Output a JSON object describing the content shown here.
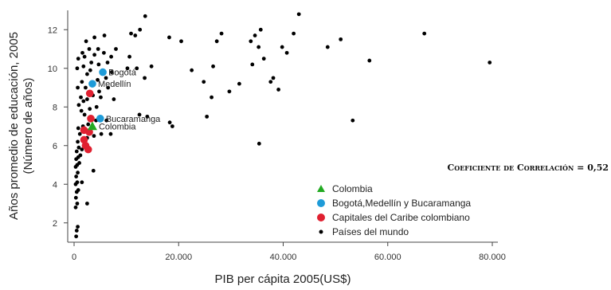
{
  "chart_data": {
    "type": "scatter",
    "xlabel": "PIB per cápita 2005(US$)",
    "ylabel": "Años promedio de educación, 2005",
    "ylabel_sub": "(Número de años)",
    "xlim": [
      0,
      80000
    ],
    "ylim": [
      1,
      13
    ],
    "x_ticks": [
      0,
      20000,
      40000,
      60000,
      80000
    ],
    "x_tick_labels": [
      "0",
      "20.000",
      "40.000",
      "60.000",
      "80.000"
    ],
    "y_ticks": [
      2,
      4,
      6,
      8,
      10,
      12
    ],
    "y_tick_labels": [
      "2",
      "4",
      "6",
      "8",
      "10",
      "12"
    ],
    "grid": false,
    "legend_position": "bottom-right",
    "annotation": "Coeficiente de Correlación = 0,52",
    "series": [
      {
        "name": "Colombia",
        "marker": "triangle",
        "color": "#22aa22",
        "points": [
          [
            3500,
            7.0
          ]
        ]
      },
      {
        "name": "Bogotá,Medellín y Bucaramanga",
        "marker": "circle",
        "color": "#1e9bd8",
        "points": [
          {
            "x": 5500,
            "y": 9.8,
            "label": "Bogotá"
          },
          {
            "x": 3500,
            "y": 9.2,
            "label": "Medellín"
          },
          {
            "x": 5000,
            "y": 7.4,
            "label": "Bucaramanga"
          }
        ]
      },
      {
        "name": "Capitales del Caribe colombiano",
        "marker": "circle",
        "color": "#e02030",
        "points": [
          [
            3000,
            8.7
          ],
          [
            3200,
            7.4
          ],
          [
            1900,
            6.8
          ],
          [
            2900,
            6.7
          ],
          [
            1900,
            6.3
          ],
          [
            2200,
            6.0
          ],
          [
            2700,
            5.8
          ]
        ]
      },
      {
        "name": "Países del mundo",
        "marker": "circle",
        "color": "#000000",
        "points": [
          [
            400,
            1.3
          ],
          [
            500,
            1.6
          ],
          [
            700,
            1.8
          ],
          [
            300,
            2.8
          ],
          [
            600,
            3.0
          ],
          [
            2500,
            3.0
          ],
          [
            350,
            3.3
          ],
          [
            500,
            3.6
          ],
          [
            800,
            3.7
          ],
          [
            300,
            4.0
          ],
          [
            600,
            4.1
          ],
          [
            1500,
            4.1
          ],
          [
            400,
            4.4
          ],
          [
            700,
            4.6
          ],
          [
            3700,
            4.7
          ],
          [
            300,
            4.9
          ],
          [
            600,
            5.0
          ],
          [
            1000,
            5.1
          ],
          [
            400,
            5.3
          ],
          [
            800,
            5.4
          ],
          [
            1200,
            5.5
          ],
          [
            500,
            5.7
          ],
          [
            1500,
            5.8
          ],
          [
            900,
            5.9
          ],
          [
            700,
            6.2
          ],
          [
            1600,
            6.3
          ],
          [
            2500,
            6.4
          ],
          [
            3800,
            6.5
          ],
          [
            1100,
            6.6
          ],
          [
            5200,
            6.6
          ],
          [
            7000,
            6.6
          ],
          [
            800,
            6.9
          ],
          [
            1700,
            7.0
          ],
          [
            2700,
            7.1
          ],
          [
            4200,
            7.3
          ],
          [
            6200,
            7.3
          ],
          [
            2000,
            7.6
          ],
          [
            1400,
            7.8
          ],
          [
            3000,
            7.9
          ],
          [
            4300,
            8.0
          ],
          [
            12500,
            7.6
          ],
          [
            14000,
            7.5
          ],
          [
            18300,
            7.2
          ],
          [
            18800,
            7.0
          ],
          [
            900,
            8.1
          ],
          [
            1800,
            8.3
          ],
          [
            2500,
            8.4
          ],
          [
            1300,
            8.5
          ],
          [
            5100,
            8.5
          ],
          [
            7600,
            8.4
          ],
          [
            3600,
            8.6
          ],
          [
            4800,
            8.8
          ],
          [
            700,
            9.0
          ],
          [
            2200,
            9.0
          ],
          [
            6500,
            9.0
          ],
          [
            1500,
            9.3
          ],
          [
            4500,
            9.4
          ],
          [
            6100,
            9.5
          ],
          [
            2500,
            9.7
          ],
          [
            3100,
            9.9
          ],
          [
            7200,
            9.8
          ],
          [
            10200,
            10.0
          ],
          [
            13500,
            9.5
          ],
          [
            600,
            10.0
          ],
          [
            1800,
            10.1
          ],
          [
            3300,
            10.3
          ],
          [
            4700,
            10.2
          ],
          [
            6400,
            10.3
          ],
          [
            12000,
            10.0
          ],
          [
            14800,
            10.1
          ],
          [
            800,
            10.5
          ],
          [
            2000,
            10.6
          ],
          [
            3900,
            10.7
          ],
          [
            5700,
            10.8
          ],
          [
            7100,
            10.6
          ],
          [
            10600,
            10.6
          ],
          [
            1600,
            10.8
          ],
          [
            2900,
            11.0
          ],
          [
            4600,
            11.0
          ],
          [
            8000,
            11.0
          ],
          [
            2300,
            11.4
          ],
          [
            3900,
            11.6
          ],
          [
            5800,
            11.7
          ],
          [
            10900,
            11.8
          ],
          [
            11700,
            11.7
          ],
          [
            12600,
            12.0
          ],
          [
            13600,
            12.7
          ],
          [
            18200,
            11.6
          ],
          [
            20500,
            11.4
          ],
          [
            22500,
            9.9
          ],
          [
            24800,
            9.3
          ],
          [
            25400,
            7.5
          ],
          [
            26300,
            8.5
          ],
          [
            26600,
            10.1
          ],
          [
            27300,
            11.4
          ],
          [
            28200,
            11.8
          ],
          [
            29700,
            8.8
          ],
          [
            31600,
            9.2
          ],
          [
            33800,
            11.4
          ],
          [
            34100,
            10.2
          ],
          [
            34600,
            11.7
          ],
          [
            35300,
            11.1
          ],
          [
            35700,
            12.0
          ],
          [
            35400,
            6.1
          ],
          [
            36300,
            10.5
          ],
          [
            37600,
            9.3
          ],
          [
            38100,
            9.5
          ],
          [
            39100,
            8.9
          ],
          [
            39800,
            11.1
          ],
          [
            40700,
            10.8
          ],
          [
            42000,
            11.8
          ],
          [
            43000,
            12.8
          ],
          [
            48500,
            11.1
          ],
          [
            51000,
            11.5
          ],
          [
            53300,
            7.3
          ],
          [
            56500,
            10.4
          ],
          [
            67000,
            11.8
          ],
          [
            79500,
            10.3
          ]
        ]
      }
    ]
  }
}
